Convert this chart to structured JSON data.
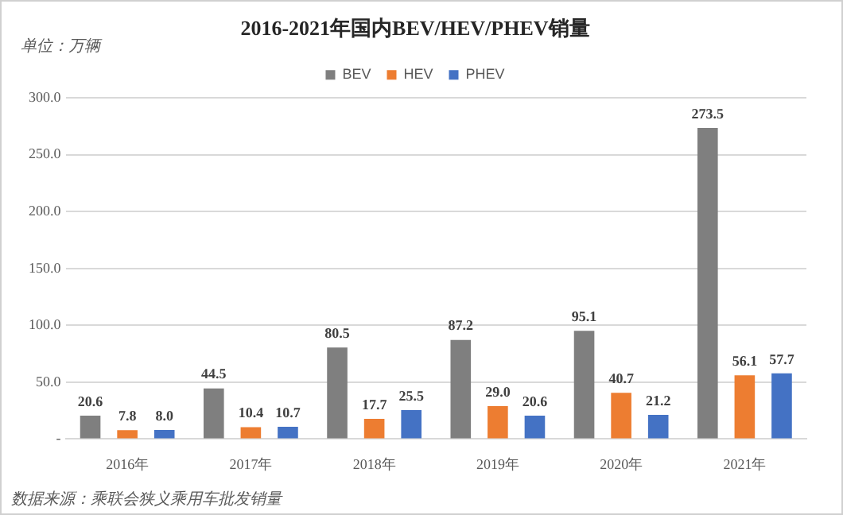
{
  "chart_data": {
    "type": "bar",
    "title": "2016-2021年国内BEV/HEV/PHEV销量",
    "ylabel": "单位：万辆",
    "categories": [
      "2016年",
      "2017年",
      "2018年",
      "2019年",
      "2020年",
      "2021年"
    ],
    "series": [
      {
        "name": "BEV",
        "color": "#7f7f7f",
        "values": [
          20.6,
          44.5,
          80.5,
          87.2,
          95.1,
          273.5
        ],
        "value_labels": [
          "20.6",
          "44.5",
          "80.5",
          "87.2",
          "95.1",
          "273.5"
        ]
      },
      {
        "name": "HEV",
        "color": "#ed7d31",
        "values": [
          7.8,
          10.4,
          17.7,
          29.0,
          40.7,
          56.1
        ],
        "value_labels": [
          "7.8",
          "10.4",
          "17.7",
          "29.0",
          "40.7",
          "56.1"
        ]
      },
      {
        "name": "PHEV",
        "color": "#4472c4",
        "values": [
          8.0,
          10.7,
          25.5,
          20.6,
          21.2,
          57.7
        ],
        "value_labels": [
          "8.0",
          "10.7",
          "25.5",
          "20.6",
          "21.2",
          "57.7"
        ]
      }
    ],
    "ylim": [
      0,
      300
    ],
    "yticks": [
      {
        "value": 0,
        "label": "-"
      },
      {
        "value": 50,
        "label": "50.0"
      },
      {
        "value": 100,
        "label": "100.0"
      },
      {
        "value": 150,
        "label": "150.0"
      },
      {
        "value": 200,
        "label": "200.0"
      },
      {
        "value": 250,
        "label": "250.0"
      },
      {
        "value": 300,
        "label": "300.0"
      }
    ],
    "grid": "y",
    "legend": "top",
    "annotations": [
      "数据来源：乘联会狭义乘用车批发销量"
    ]
  }
}
